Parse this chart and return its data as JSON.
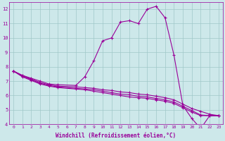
{
  "xlabel": "Windchill (Refroidissement éolien,°C)",
  "background_color": "#cde8ea",
  "line_color": "#990099",
  "grid_color": "#a0c8c8",
  "xlim": [
    -0.5,
    23.5
  ],
  "ylim": [
    4,
    12.5
  ],
  "yticks": [
    4,
    5,
    6,
    7,
    8,
    9,
    10,
    11,
    12
  ],
  "xticks": [
    0,
    1,
    2,
    3,
    4,
    5,
    6,
    7,
    8,
    9,
    10,
    11,
    12,
    13,
    14,
    15,
    16,
    17,
    18,
    19,
    20,
    21,
    22,
    23
  ],
  "series": [
    {
      "x": [
        0,
        1,
        2,
        3,
        4,
        5,
        7,
        8,
        9,
        10,
        11,
        12,
        13,
        14,
        15,
        16,
        17,
        18,
        19,
        20,
        21,
        22,
        23
      ],
      "y": [
        7.7,
        7.4,
        7.2,
        7.0,
        6.8,
        6.75,
        6.7,
        7.3,
        8.4,
        9.8,
        10.0,
        11.1,
        11.2,
        11.0,
        12.0,
        12.2,
        11.4,
        8.8,
        5.3,
        4.4,
        3.7,
        4.6,
        4.6
      ]
    },
    {
      "x": [
        0,
        1,
        2,
        3,
        4,
        5,
        7,
        8,
        9,
        10,
        11,
        12,
        13,
        14,
        15,
        16,
        17,
        18,
        19,
        20,
        21,
        22,
        23
      ],
      "y": [
        7.7,
        7.4,
        7.15,
        6.9,
        6.75,
        6.65,
        6.6,
        6.55,
        6.5,
        6.4,
        6.35,
        6.25,
        6.2,
        6.1,
        6.05,
        5.95,
        5.85,
        5.7,
        5.4,
        5.1,
        4.9,
        4.7,
        4.6
      ]
    },
    {
      "x": [
        0,
        1,
        2,
        3,
        4,
        5,
        7,
        8,
        9,
        10,
        11,
        12,
        13,
        14,
        15,
        16,
        17,
        18,
        19,
        20,
        21,
        22,
        23
      ],
      "y": [
        7.7,
        7.35,
        7.1,
        6.85,
        6.7,
        6.6,
        6.5,
        6.45,
        6.4,
        6.3,
        6.2,
        6.1,
        6.05,
        5.95,
        5.9,
        5.8,
        5.7,
        5.55,
        5.25,
        4.95,
        4.65,
        4.6,
        4.6
      ]
    },
    {
      "x": [
        0,
        1,
        2,
        3,
        4,
        5,
        7,
        8,
        9,
        10,
        11,
        12,
        13,
        14,
        15,
        16,
        17,
        18,
        19,
        20,
        21,
        22,
        23
      ],
      "y": [
        7.7,
        7.3,
        7.05,
        6.8,
        6.65,
        6.55,
        6.45,
        6.4,
        6.3,
        6.2,
        6.1,
        6.0,
        5.9,
        5.85,
        5.8,
        5.7,
        5.6,
        5.45,
        5.15,
        4.85,
        4.6,
        4.6,
        4.6
      ]
    }
  ]
}
